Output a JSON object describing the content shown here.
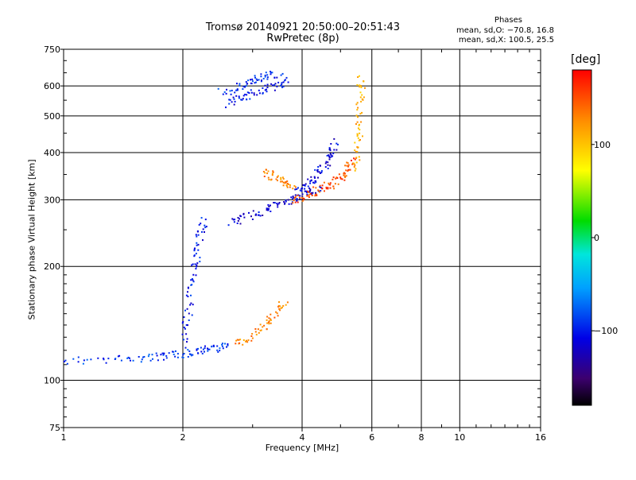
{
  "title_line1": "Tromsø 20140921 20:50:00–20:51:43",
  "title_line2": "RwPretec (8p)",
  "phase_box": {
    "heading": "Phases",
    "line1": "mean, sd,O: −70.8, 16.8",
    "line2": "mean, sd,X: 100.5, 25.5"
  },
  "colorbar": {
    "unit_label": "[deg]",
    "tick_labels": [
      "100",
      "0",
      "−100"
    ],
    "tick_values": [
      100,
      0,
      -100
    ],
    "range": [
      -180,
      180
    ]
  },
  "chart_data": {
    "type": "scatter",
    "xlabel": "Frequency [MHz]",
    "ylabel": "Stationary phase Virtual Height [km]",
    "x_scale": "log",
    "y_scale": "log",
    "xlim": [
      1,
      16
    ],
    "ylim": [
      75,
      750
    ],
    "x_ticks": [
      1,
      2,
      4,
      6,
      8,
      10,
      16
    ],
    "x_tick_labels": [
      "1",
      "2",
      "4",
      "6",
      "8",
      "10",
      "16"
    ],
    "y_ticks": [
      75,
      100,
      200,
      300,
      400,
      500,
      600,
      750
    ],
    "y_tick_labels": [
      "75",
      "100",
      "200",
      "300",
      "400",
      "500",
      "600",
      "750"
    ],
    "grid": true,
    "traces": [
      {
        "x": [
          1.0,
          1.3,
          1.6,
          1.8,
          2.0,
          2.2,
          2.4,
          2.6
        ],
        "y": [
          113,
          114,
          115,
          116,
          118,
          120,
          122,
          125
        ],
        "phase": -90
      },
      {
        "x": [
          2.0,
          2.05,
          2.1,
          2.15,
          2.2,
          2.25
        ],
        "y": [
          125,
          150,
          180,
          210,
          240,
          270
        ],
        "phase": -100
      },
      {
        "x": [
          2.6,
          2.9,
          3.2,
          3.5,
          3.8,
          4.1,
          4.4
        ],
        "y": [
          262,
          272,
          283,
          293,
          303,
          312,
          320
        ],
        "phase": -115
      },
      {
        "x": [
          3.8,
          4.1,
          4.4,
          4.7,
          5.0,
          5.2,
          5.4
        ],
        "y": [
          300,
          310,
          320,
          330,
          345,
          365,
          390
        ],
        "phase": 150
      },
      {
        "x": [
          3.9,
          4.1,
          4.3,
          4.5,
          4.7,
          4.85
        ],
        "y": [
          315,
          330,
          345,
          365,
          395,
          430
        ],
        "phase": -110
      },
      {
        "x": [
          5.45,
          5.5,
          5.55,
          5.6,
          5.62
        ],
        "y": [
          360,
          420,
          480,
          560,
          640
        ],
        "phase": 110
      },
      {
        "x": [
          2.5,
          2.8,
          3.0,
          3.2,
          3.5
        ],
        "y": [
          580,
          600,
          620,
          640,
          650
        ],
        "phase": -95
      },
      {
        "x": [
          2.6,
          2.8,
          3.1,
          3.4,
          3.7
        ],
        "y": [
          540,
          560,
          580,
          600,
          620
        ],
        "phase": -105
      },
      {
        "x": [
          2.7,
          3.0,
          3.2,
          3.4,
          3.6
        ],
        "y": [
          125,
          130,
          140,
          150,
          165
        ],
        "phase": 130
      },
      {
        "x": [
          3.2,
          3.4,
          3.6,
          3.8
        ],
        "y": [
          360,
          345,
          335,
          330
        ],
        "phase": 130
      }
    ]
  }
}
